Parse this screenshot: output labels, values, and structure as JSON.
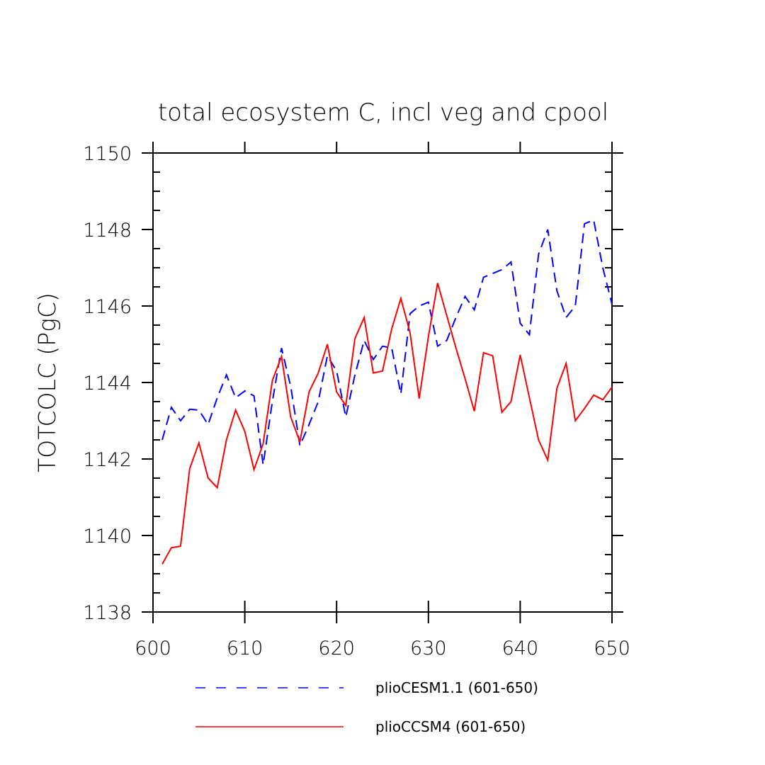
{
  "chart_data": {
    "type": "line",
    "title": "total ecosystem C, incl veg and cpool",
    "xlabel": "",
    "ylabel": "TOTCOLC  (PgC)",
    "xlim": [
      600,
      650
    ],
    "ylim": [
      1138,
      1150
    ],
    "xticks": [
      600,
      610,
      620,
      630,
      640,
      650
    ],
    "yticks": [
      1138,
      1140,
      1142,
      1144,
      1146,
      1148,
      1150
    ],
    "xtick_labels": [
      "600",
      "610",
      "620",
      "630",
      "640",
      "650"
    ],
    "ytick_labels": [
      "1138",
      "1140",
      "1142",
      "1144",
      "1146",
      "1148",
      "1150"
    ],
    "grid": false,
    "legend_position": "bottom",
    "x": [
      601,
      602,
      603,
      604,
      605,
      606,
      607,
      608,
      609,
      610,
      611,
      612,
      613,
      614,
      615,
      616,
      617,
      618,
      619,
      620,
      621,
      622,
      623,
      624,
      625,
      626,
      627,
      628,
      629,
      630,
      631,
      632,
      633,
      634,
      635,
      636,
      637,
      638,
      639,
      640,
      641,
      642,
      643,
      644,
      645,
      646,
      647,
      648,
      649,
      650
    ],
    "series": [
      {
        "name": "plioCESM1.1 (601-650)",
        "color": "#0000ff",
        "dash": "dashed",
        "values": [
          1142.5,
          1143.35,
          1143.0,
          1143.3,
          1143.28,
          1142.9,
          1143.6,
          1144.2,
          1143.6,
          1143.78,
          1143.65,
          1141.85,
          1143.5,
          1144.9,
          1143.9,
          1142.35,
          1142.9,
          1143.5,
          1144.7,
          1144.3,
          1143.1,
          1144.2,
          1145.1,
          1144.6,
          1144.95,
          1144.9,
          1143.7,
          1145.8,
          1146.0,
          1146.1,
          1144.95,
          1145.1,
          1145.7,
          1146.25,
          1145.9,
          1146.75,
          1146.85,
          1146.95,
          1147.15,
          1145.55,
          1145.25,
          1147.35,
          1148.0,
          1146.4,
          1145.7,
          1146.0,
          1148.15,
          1148.25,
          1147.0,
          1146.05
        ]
      },
      {
        "name": "plioCCSM4 (601-650)",
        "color": "#ff0000",
        "dash": "solid",
        "values": [
          1139.25,
          1139.68,
          1139.72,
          1141.75,
          1142.42,
          1141.5,
          1141.25,
          1142.5,
          1143.28,
          1142.72,
          1141.72,
          1142.4,
          1144.05,
          1144.68,
          1143.1,
          1142.45,
          1143.75,
          1144.25,
          1145.0,
          1143.75,
          1143.4,
          1145.15,
          1145.7,
          1144.25,
          1144.3,
          1145.4,
          1146.2,
          1145.3,
          1143.58,
          1145.2,
          1146.6,
          1145.75,
          1144.9,
          1144.1,
          1143.25,
          1144.78,
          1144.7,
          1143.22,
          1143.5,
          1144.72,
          1143.6,
          1142.5,
          1141.97,
          1143.85,
          1144.5,
          1143.0,
          1143.32,
          1143.67,
          1143.55,
          1143.88
        ]
      }
    ]
  }
}
